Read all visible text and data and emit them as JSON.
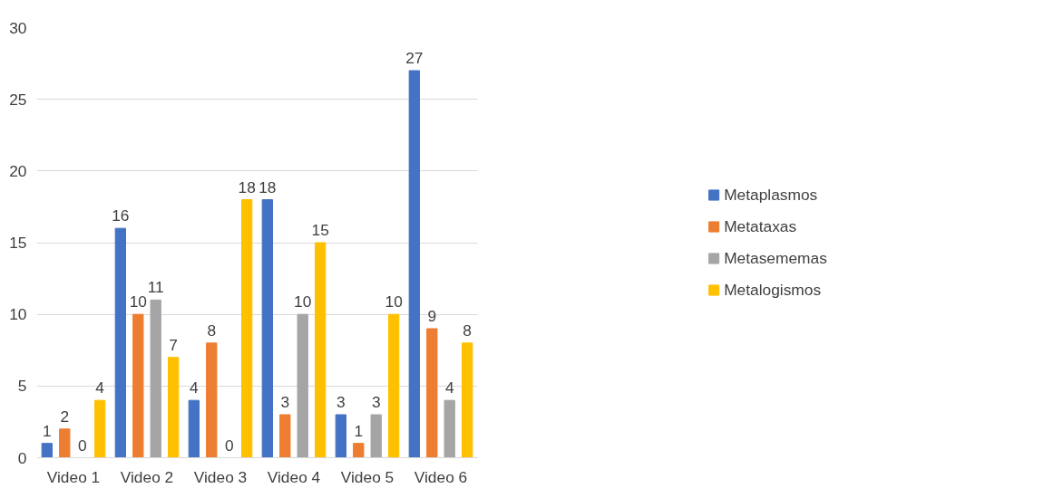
{
  "chart_data": {
    "type": "bar",
    "categories": [
      "Video 1",
      "Video 2",
      "Video 3",
      "Video 4",
      "Video 5",
      "Video 6"
    ],
    "series": [
      {
        "name": "Metaplasmos",
        "color": "#4472c4",
        "values": [
          1,
          16,
          4,
          18,
          3,
          27
        ]
      },
      {
        "name": "Metataxas",
        "color": "#ed7d31",
        "values": [
          2,
          10,
          8,
          3,
          1,
          9
        ]
      },
      {
        "name": "Metasememas",
        "color": "#a5a5a5",
        "values": [
          0,
          11,
          0,
          10,
          3,
          4
        ]
      },
      {
        "name": "Metalogismos",
        "color": "#ffc000",
        "values": [
          4,
          7,
          18,
          15,
          10,
          8
        ]
      }
    ],
    "ylim": [
      0,
      30
    ],
    "yticks": [
      0,
      5,
      10,
      15,
      20,
      25,
      30
    ],
    "grid": "y",
    "legend": "right",
    "data_labels": true
  }
}
